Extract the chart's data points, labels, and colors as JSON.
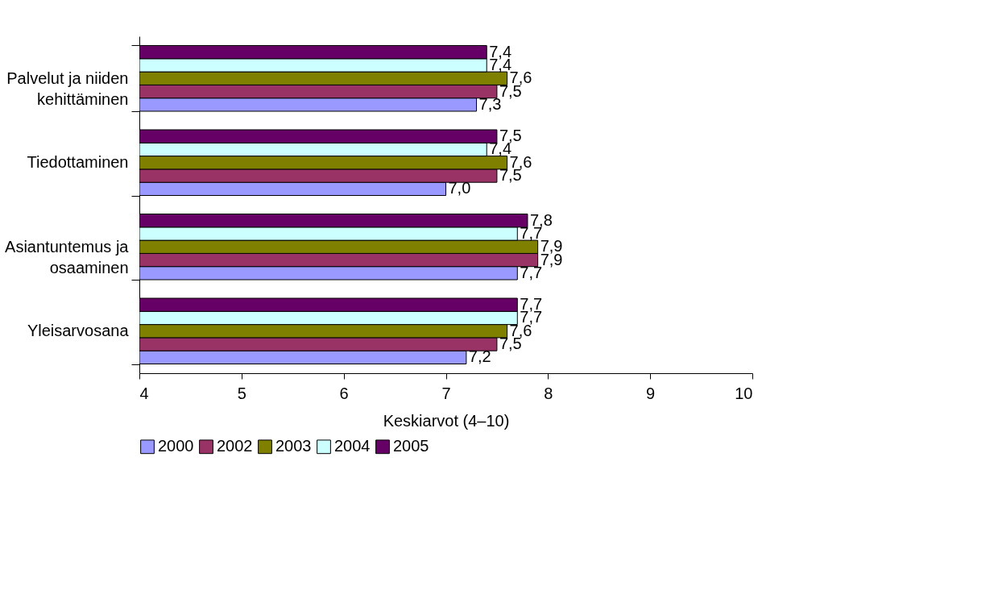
{
  "chart_data": {
    "type": "bar",
    "orientation": "horizontal",
    "xlabel": "Keskiarvot (4–10)",
    "categories": [
      "Palvelut ja niiden kehittäminen",
      "Tiedottaminen",
      "Asiantuntemus ja osaaminen",
      "Yleisarvosana"
    ],
    "series": [
      {
        "name": "2000",
        "color": "#9999ff",
        "values": [
          7.3,
          7.0,
          7.7,
          7.2
        ],
        "value_labels": [
          "7,3",
          "7,0",
          "7,7",
          "7,2"
        ]
      },
      {
        "name": "2002",
        "color": "#993366",
        "values": [
          7.5,
          7.5,
          7.9,
          7.5
        ],
        "value_labels": [
          "7,5",
          "7,5",
          "7,9",
          "7,5"
        ]
      },
      {
        "name": "2003",
        "color": "#808000",
        "values": [
          7.6,
          7.6,
          7.9,
          7.6
        ],
        "value_labels": [
          "7,6",
          "7,6",
          "7,9",
          "7,6"
        ]
      },
      {
        "name": "2004",
        "color": "#ccffff",
        "values": [
          7.4,
          7.4,
          7.7,
          7.7
        ],
        "value_labels": [
          "7,4",
          "7,4",
          "7,7",
          "7,7"
        ]
      },
      {
        "name": "2005",
        "color": "#660066",
        "values": [
          7.4,
          7.5,
          7.8,
          7.7
        ],
        "value_labels": [
          "7,4",
          "7,5",
          "7,8",
          "7,7"
        ]
      }
    ],
    "xlim": [
      4,
      10
    ],
    "xticks": [
      4,
      5,
      6,
      7,
      8,
      9,
      10
    ],
    "legend": "bottom",
    "grid": false
  }
}
